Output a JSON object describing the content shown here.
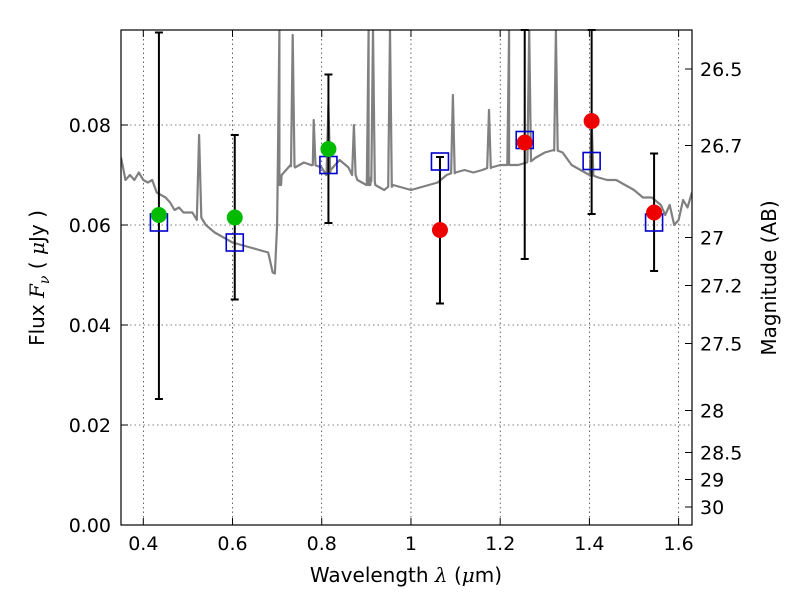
{
  "chart_data": {
    "type": "scatter",
    "xlabel": "Wavelength  λ (μm)",
    "ylabel": "Flux  Fν  ( μJy )",
    "ylabel_right": "Magnitude (AB)",
    "xlim": [
      0.35,
      1.63
    ],
    "ylim": [
      0.0,
      0.099
    ],
    "grid": true,
    "x_ticks": [
      0.4,
      0.6,
      0.8,
      1.0,
      1.2,
      1.4,
      1.6
    ],
    "x_tick_labels": [
      "0.4",
      "0.6",
      "0.8",
      "1",
      "1.2",
      "1.4",
      "1.6"
    ],
    "y_ticks": [
      0.0,
      0.02,
      0.04,
      0.06,
      0.08
    ],
    "y_tick_labels": [
      "0.00",
      "0.02",
      "0.04",
      "0.06",
      "0.08"
    ],
    "right_ticks": [
      {
        "label": "26.5",
        "flux": 0.0912
      },
      {
        "label": "26.7",
        "flux": 0.0759
      },
      {
        "label": "27",
        "flux": 0.0575
      },
      {
        "label": "27.2",
        "flux": 0.0479
      },
      {
        "label": "27.5",
        "flux": 0.0363
      },
      {
        "label": "28",
        "flux": 0.0229
      },
      {
        "label": "28.5",
        "flux": 0.0145
      },
      {
        "label": "29",
        "flux": 0.0091
      },
      {
        "label": "30",
        "flux": 0.0036
      }
    ],
    "model_spectrum": {
      "color": "#808080",
      "x": [
        0.35,
        0.36,
        0.37,
        0.38,
        0.39,
        0.4,
        0.41,
        0.42,
        0.43,
        0.44,
        0.45,
        0.46,
        0.47,
        0.48,
        0.49,
        0.5,
        0.51,
        0.52,
        0.525,
        0.53,
        0.54,
        0.56,
        0.58,
        0.6,
        0.62,
        0.64,
        0.66,
        0.68,
        0.69,
        0.695,
        0.7,
        0.705,
        0.71,
        0.72,
        0.73,
        0.74,
        0.75,
        0.76,
        0.78,
        0.8,
        0.81,
        0.82,
        0.83,
        0.84,
        0.86,
        0.88,
        0.9,
        0.905,
        0.91,
        0.92,
        0.93,
        0.94,
        0.96,
        0.98,
        1.0,
        1.02,
        1.04,
        1.06,
        1.08,
        1.1,
        1.1,
        1.12,
        1.14,
        1.16,
        1.18,
        1.2,
        1.22,
        1.24,
        1.26,
        1.28,
        1.3,
        1.32,
        1.34,
        1.36,
        1.38,
        1.4,
        1.42,
        1.44,
        1.46,
        1.48,
        1.5,
        1.52,
        1.54,
        1.56,
        1.57,
        1.58,
        1.59,
        1.6,
        1.61,
        1.62,
        1.63
      ],
      "y": [
        0.0735,
        0.069,
        0.07,
        0.069,
        0.0705,
        0.069,
        0.0685,
        0.069,
        0.0665,
        0.066,
        0.0655,
        0.0645,
        0.063,
        0.0635,
        0.0625,
        0.0625,
        0.0625,
        0.061,
        0.078,
        0.0615,
        0.06,
        0.0585,
        0.0575,
        0.0565,
        0.056,
        0.0555,
        0.055,
        0.0545,
        0.0505,
        0.0503,
        0.06,
        0.068,
        0.07,
        0.071,
        0.072,
        0.0715,
        0.072,
        0.0725,
        0.072,
        0.0715,
        0.07,
        0.071,
        0.072,
        0.073,
        0.0715,
        0.069,
        0.068,
        0.068,
        0.0695,
        0.068,
        0.0675,
        0.067,
        0.068,
        0.0675,
        0.067,
        0.0675,
        0.068,
        0.0685,
        0.07,
        0.0705,
        0.0705,
        0.071,
        0.0705,
        0.071,
        0.0715,
        0.072,
        0.072,
        0.072,
        0.0725,
        0.0735,
        0.0745,
        0.075,
        0.0745,
        0.072,
        0.071,
        0.07,
        0.0695,
        0.069,
        0.069,
        0.068,
        0.067,
        0.0655,
        0.0655,
        0.064,
        0.062,
        0.064,
        0.06,
        0.061,
        0.065,
        0.0635,
        0.0665
      ],
      "emission_lines": [
        {
          "x": 0.705,
          "top": 0.099
        },
        {
          "x": 0.735,
          "top": 0.098
        },
        {
          "x": 0.782,
          "top": 0.081
        },
        {
          "x": 0.815,
          "top": 0.084
        },
        {
          "x": 0.872,
          "top": 0.08
        },
        {
          "x": 0.905,
          "top": 0.099
        },
        {
          "x": 0.915,
          "top": 0.099
        },
        {
          "x": 0.953,
          "top": 0.099
        },
        {
          "x": 1.094,
          "top": 0.086
        },
        {
          "x": 1.175,
          "top": 0.083
        },
        {
          "x": 1.22,
          "top": 0.099
        },
        {
          "x": 1.265,
          "top": 0.099
        },
        {
          "x": 1.325,
          "top": 0.099
        },
        {
          "x": 1.405,
          "top": 0.081
        }
      ]
    },
    "model_photometry": {
      "marker": "open-square",
      "color": "#0000cc",
      "x": [
        0.435,
        0.605,
        0.815,
        1.065,
        1.255,
        1.405,
        1.545
      ],
      "y": [
        0.0605,
        0.0565,
        0.072,
        0.0727,
        0.077,
        0.0728,
        0.0605
      ]
    },
    "observed_green": {
      "marker": "filled-circle",
      "color": "#00bb00",
      "x": [
        0.435,
        0.605,
        0.815
      ],
      "y": [
        0.062,
        0.0615,
        0.0752
      ]
    },
    "observed_red": {
      "marker": "filled-circle",
      "color": "#ee0000",
      "x": [
        1.065,
        1.255,
        1.405,
        1.545
      ],
      "y": [
        0.059,
        0.0765,
        0.0808,
        0.0625
      ]
    },
    "error_bars": [
      {
        "x": 0.435,
        "low": 0.0252,
        "high": 0.0985
      },
      {
        "x": 0.605,
        "low": 0.0451,
        "high": 0.078
      },
      {
        "x": 0.815,
        "low": 0.0604,
        "high": 0.0901
      },
      {
        "x": 1.065,
        "low": 0.0443,
        "high": 0.0736
      },
      {
        "x": 1.255,
        "low": 0.0532,
        "high": 0.099
      },
      {
        "x": 1.405,
        "low": 0.0622,
        "high": 0.099
      },
      {
        "x": 1.545,
        "low": 0.0508,
        "high": 0.0743
      }
    ]
  }
}
